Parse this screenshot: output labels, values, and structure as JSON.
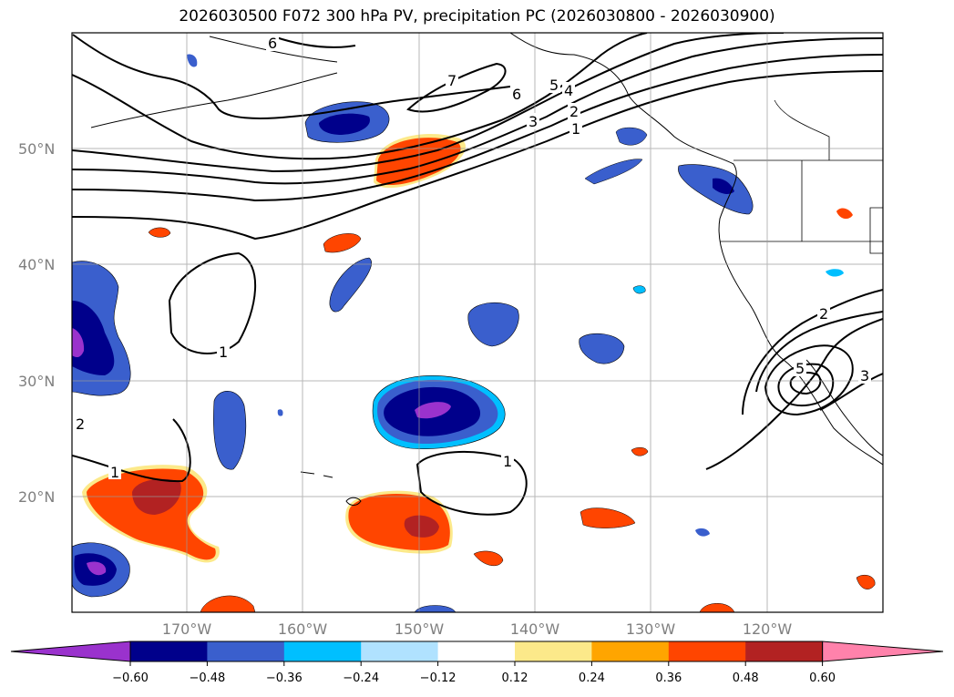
{
  "title": "2026030500 F072 300 hPa PV, precipitation PC (2026030800 - 2026030900)",
  "map": {
    "lat_labels": [
      "50°N",
      "40°N",
      "30°N",
      "20°N"
    ],
    "lon_labels": [
      "170°W",
      "160°W",
      "150°W",
      "140°W",
      "130°W",
      "120°W"
    ],
    "contour_labels": [
      "6",
      "7",
      "6",
      "5",
      "4",
      "3",
      "2",
      "1",
      "1",
      "1",
      "2",
      "1",
      "2",
      "5",
      "3"
    ],
    "grid": true
  },
  "colorbar": {
    "ticks": [
      "−0.60",
      "−0.48",
      "−0.36",
      "−0.24",
      "−0.12",
      "0.12",
      "0.24",
      "0.36",
      "0.48",
      "0.60"
    ],
    "colors": [
      "#9a32cd",
      "#00008b",
      "#3a5fcd",
      "#00bfff",
      "#b0e2ff",
      "#ffffff",
      "#fce98a",
      "#ffa500",
      "#ff4500",
      "#b22222",
      "#ff82ab"
    ]
  },
  "colors": {
    "purple": "#9a32cd",
    "navy": "#00008b",
    "royal": "#3a5fcd",
    "sky": "#00bfff",
    "lightblue": "#b0e2ff",
    "yellow": "#fce98a",
    "orange": "#ffa500",
    "orangered": "#ff4500",
    "firebrick": "#b22222"
  }
}
